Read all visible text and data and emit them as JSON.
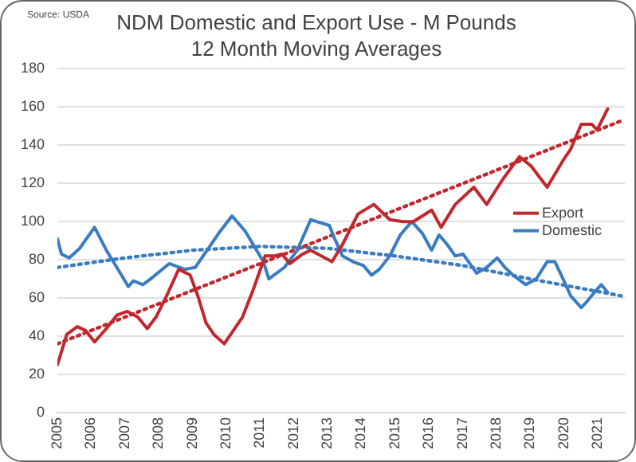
{
  "chart_data": {
    "type": "line",
    "title": "NDM Domestic and Export Use - M Pounds",
    "subtitle": "12 Month Moving Averages",
    "annotations": [
      "Source: USDA"
    ],
    "xlim": [
      2005,
      2021.8
    ],
    "xticks": [
      2005,
      2006,
      2007,
      2008,
      2009,
      2010,
      2011,
      2012,
      2013,
      2014,
      2015,
      2016,
      2017,
      2018,
      2019,
      2020,
      2021
    ],
    "ylim": [
      0,
      180
    ],
    "yticks": [
      0,
      20,
      40,
      60,
      80,
      100,
      120,
      140,
      160,
      180
    ],
    "grid": "y",
    "legend": "right",
    "marker": "none",
    "series": [
      {
        "name": "Export",
        "color": "#c0282d",
        "x": [
          2005,
          2005.28,
          2005.59,
          2005.83,
          2006.1,
          2006.45,
          2006.76,
          2007.07,
          2007.38,
          2007.66,
          2007.92,
          2008.23,
          2008.59,
          2008.93,
          2009.16,
          2009.4,
          2009.63,
          2009.94,
          2010.25,
          2010.48,
          2010.79,
          2011.15,
          2011.42,
          2011.65,
          2011.88,
          2012.26,
          2012.5,
          2013.13,
          2013.44,
          2013.9,
          2014.37,
          2014.84,
          2015.23,
          2015.54,
          2016.08,
          2016.36,
          2016.78,
          2017.33,
          2017.71,
          2018.18,
          2018.68,
          2019.03,
          2019.5,
          2019.97,
          2020.2,
          2020.51,
          2020.82,
          2020.98,
          2021.29
        ],
        "values": [
          25,
          41,
          45,
          43,
          37,
          44,
          51,
          53,
          50,
          44,
          50,
          61,
          75,
          72,
          61,
          47,
          41,
          36,
          44,
          50,
          64,
          82,
          82,
          83,
          78,
          83,
          85,
          79,
          88,
          104,
          109,
          101,
          100,
          100,
          106,
          97,
          109,
          118,
          109,
          122,
          134,
          129,
          118,
          132,
          138,
          151,
          151,
          148,
          159
        ]
      },
      {
        "name": "Domestic",
        "color": "#3a7cc2",
        "x": [
          2005,
          2005.12,
          2005.35,
          2005.66,
          2006.1,
          2006.45,
          2006.76,
          2007.1,
          2007.25,
          2007.53,
          2007.76,
          2008.31,
          2008.77,
          2009.08,
          2009.47,
          2009.78,
          2010.17,
          2010.56,
          2011.1,
          2011.26,
          2011.72,
          2012.1,
          2012.5,
          2013.05,
          2013.21,
          2013.44,
          2013.75,
          2014.06,
          2014.3,
          2014.53,
          2014.84,
          2015.15,
          2015.49,
          2015.8,
          2016.08,
          2016.3,
          2016.54,
          2016.78,
          2017.01,
          2017.41,
          2017.71,
          2018.02,
          2018.25,
          2018.49,
          2018.87,
          2019.18,
          2019.5,
          2019.73,
          2019.97,
          2020.2,
          2020.51,
          2020.67,
          2020.9,
          2021.1,
          2021.29
        ],
        "values": [
          91,
          83,
          81,
          86,
          97,
          85,
          76,
          66,
          69,
          67,
          70,
          78,
          75,
          76,
          86,
          94,
          103,
          95,
          79,
          70,
          76,
          85,
          101,
          98,
          91,
          82,
          79,
          77,
          72,
          75,
          82,
          93,
          100,
          94,
          85,
          93,
          88,
          82,
          83,
          73,
          76,
          81,
          76,
          72,
          67,
          70,
          79,
          79,
          70,
          61,
          55,
          58,
          63,
          67,
          63
        ]
      },
      {
        "color": "#c0282d",
        "line_style": "dotted",
        "x": [
          2005,
          2021.73
        ],
        "values": [
          36,
          153
        ]
      },
      {
        "color": "#3a7cc2",
        "line_style": "dotted",
        "x": [
          2005,
          2007,
          2009,
          2011,
          2013,
          2015,
          2017,
          2019,
          2021.73
        ],
        "values": [
          76,
          81,
          85,
          87,
          86,
          82,
          77,
          70,
          61
        ]
      }
    ]
  }
}
